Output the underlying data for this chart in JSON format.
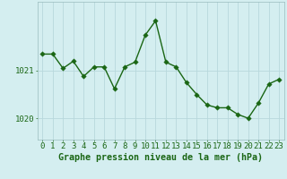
{
  "x": [
    0,
    1,
    2,
    3,
    4,
    5,
    6,
    7,
    8,
    9,
    10,
    11,
    12,
    13,
    14,
    15,
    16,
    17,
    18,
    19,
    20,
    21,
    22,
    23
  ],
  "y": [
    1021.35,
    1021.35,
    1021.05,
    1021.2,
    1020.88,
    1021.08,
    1021.08,
    1020.62,
    1021.08,
    1021.18,
    1021.75,
    1022.05,
    1021.18,
    1021.08,
    1020.75,
    1020.5,
    1020.28,
    1020.22,
    1020.22,
    1020.08,
    1020.0,
    1020.32,
    1020.72,
    1020.82
  ],
  "line_color": "#1a6614",
  "marker_color": "#1a6614",
  "bg_color": "#d4eef0",
  "grid_color": "#b8d8dc",
  "xlabel": "Graphe pression niveau de la mer (hPa)",
  "xlabel_color": "#1a6614",
  "tick_color": "#1a6614",
  "ytick_labels": [
    "1020",
    "1021"
  ],
  "ytick_values": [
    1020,
    1021
  ],
  "ylim": [
    1019.55,
    1022.45
  ],
  "xlim": [
    -0.5,
    23.5
  ],
  "xtick_labels": [
    "0",
    "1",
    "2",
    "3",
    "4",
    "5",
    "6",
    "7",
    "8",
    "9",
    "10",
    "11",
    "12",
    "13",
    "14",
    "15",
    "16",
    "17",
    "18",
    "19",
    "20",
    "21",
    "22",
    "23"
  ],
  "marker_size": 2.8,
  "line_width": 1.0,
  "font_size_xlabel": 7.2,
  "font_size_ticks": 6.5
}
